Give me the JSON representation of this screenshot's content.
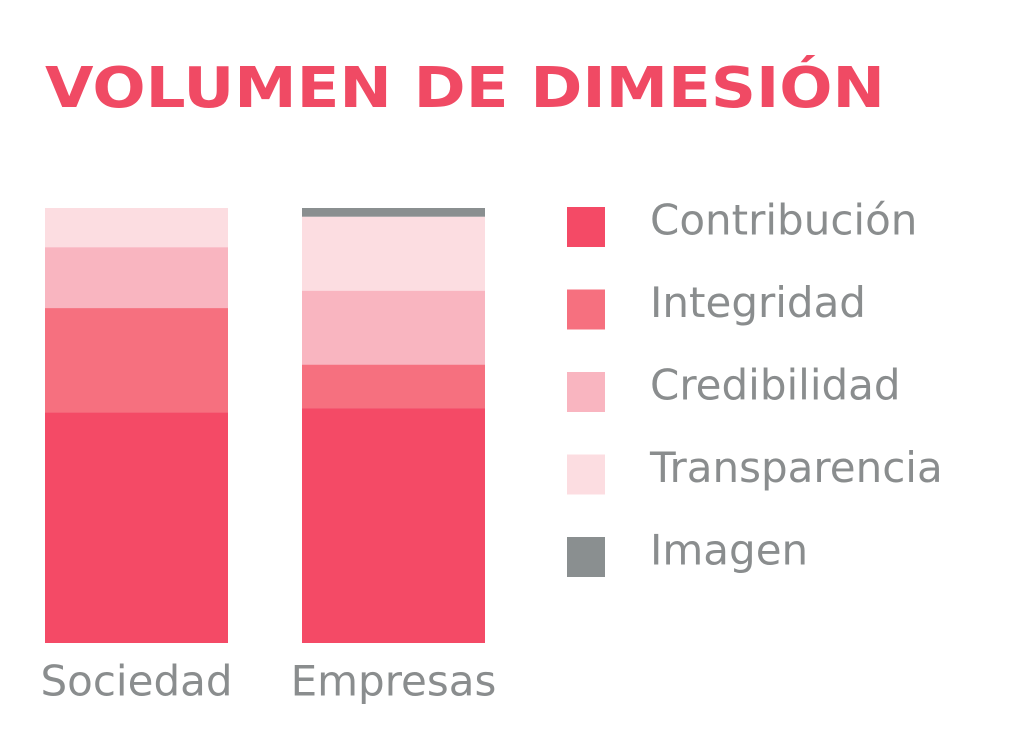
{
  "chart_data": {
    "type": "stacked-bar",
    "title": "VOLUMEN DE DIMESIÓN",
    "categories": [
      "Sociedad",
      "Empresas"
    ],
    "series": [
      {
        "name": "Contribución",
        "color": "#f44a66",
        "values": [
          53,
          54
        ]
      },
      {
        "name": "Integridad",
        "color": "#f6707f",
        "values": [
          24,
          10
        ]
      },
      {
        "name": "Credibilidad",
        "color": "#f9b5c0",
        "values": [
          14,
          17
        ]
      },
      {
        "name": "Transparencia",
        "color": "#fcdde1",
        "values": [
          9,
          17
        ]
      },
      {
        "name": "Imagen",
        "color": "#8a8f90",
        "values": [
          0,
          2
        ]
      }
    ],
    "ylim": [
      0,
      100
    ],
    "legend": "right"
  }
}
